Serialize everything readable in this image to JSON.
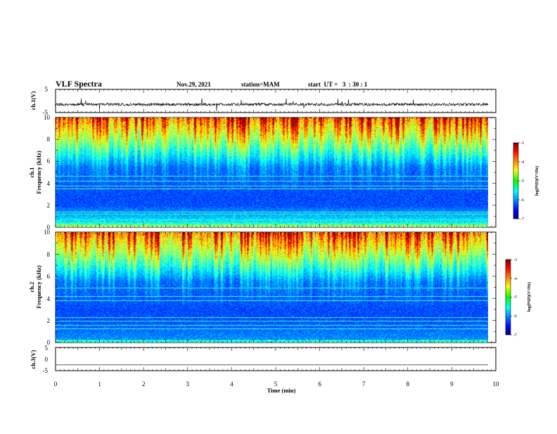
{
  "header": {
    "title": "VLF Spectra",
    "date": "Nov.29, 2021",
    "station": "station=MAM",
    "start": "start  UT =   3  : 30 : 1"
  },
  "chart_data": {
    "type": "heatmap",
    "time_axis": {
      "label": "Time  (min)",
      "range": [
        0,
        10
      ],
      "ticks": [
        "0",
        "1",
        "2",
        "3",
        "4",
        "5",
        "6",
        "7",
        "8",
        "9",
        "10"
      ],
      "data_end": 9.83
    },
    "waveform_ch1": {
      "label": "ch.1(V)",
      "range": [
        -5,
        5
      ],
      "ticks": [
        "5",
        "-5"
      ],
      "baseline": -1.5
    },
    "spectrogram_ch1": {
      "label_top": "ch.1",
      "label_bottom": "Frequency  (kHz)",
      "range": [
        0,
        10
      ],
      "ticks": [
        "0",
        "2",
        "4",
        "6",
        "8",
        "10"
      ]
    },
    "spectrogram_ch2": {
      "label_top": "ch.2",
      "label_bottom": "Frequency  (kHz)",
      "range": [
        0,
        10
      ],
      "ticks": [
        "0",
        "2",
        "4",
        "6",
        "8",
        "10"
      ]
    },
    "waveform_ch3": {
      "label": "ch.3(V)",
      "range": [
        -5,
        5
      ],
      "ticks": [
        "5",
        "0",
        "-5"
      ],
      "baseline": -2.5
    },
    "colorbar": {
      "label": "log(PSD)(V²/Hz)",
      "range": [
        -7,
        -3
      ],
      "ticks": [
        "-3",
        "-4",
        "-5",
        "-6",
        "-7"
      ],
      "colormap": "jet"
    }
  }
}
